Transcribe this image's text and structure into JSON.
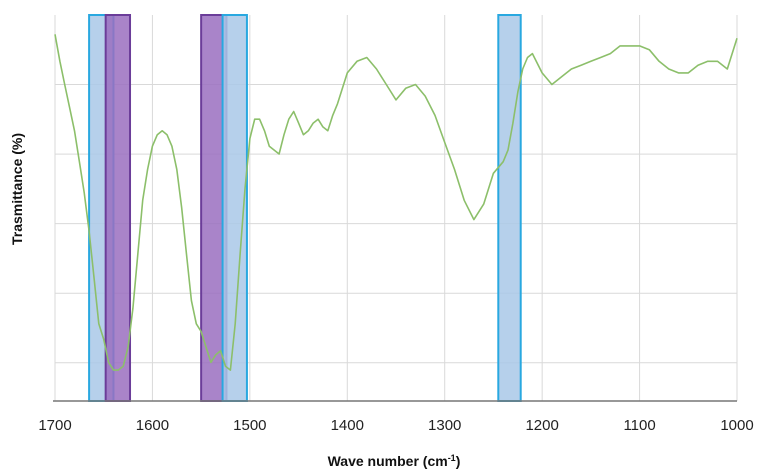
{
  "chart_data": {
    "type": "line",
    "xlabel_text": "Wave number (cm",
    "xlabel_sup": "-1",
    "xlabel_tail": ")",
    "ylabel": "Trasmittance (%)",
    "xlim": [
      1700,
      1000
    ],
    "x_reversed": true,
    "ylim": [
      0,
      100
    ],
    "x_ticks": [
      "1700",
      "1600",
      "1500",
      "1400",
      "1300",
      "1200",
      "1100",
      "1000"
    ],
    "y_ticks_count": 6,
    "grid": true,
    "line_color": "#8cbf6a",
    "bands": [
      {
        "x1": 1665,
        "x2": 1640,
        "fill": "#a9c8e8",
        "stroke": "#29a8e0"
      },
      {
        "x1": 1648,
        "x2": 1623,
        "fill": "#9a6fc0",
        "stroke": "#6b3d99"
      },
      {
        "x1": 1550,
        "x2": 1524,
        "fill": "#9a6fc0",
        "stroke": "#6b3d99"
      },
      {
        "x1": 1528,
        "x2": 1503,
        "fill": "#a9c8e8",
        "stroke": "#29a8e0"
      },
      {
        "x1": 1245,
        "x2": 1222,
        "fill": "#a9c8e8",
        "stroke": "#29a8e0"
      }
    ],
    "series": [
      {
        "x": [
          1700,
          1695,
          1690,
          1685,
          1680,
          1675,
          1670,
          1665,
          1660,
          1655,
          1650,
          1645,
          1640,
          1635,
          1630,
          1625,
          1620,
          1615,
          1610,
          1605,
          1600,
          1595,
          1590,
          1585,
          1580,
          1575,
          1570,
          1565,
          1560,
          1555,
          1550,
          1545,
          1540,
          1535,
          1530,
          1525,
          1520,
          1515,
          1510,
          1505,
          1500,
          1495,
          1490,
          1485,
          1480,
          1475,
          1470,
          1465,
          1460,
          1455,
          1450,
          1445,
          1440,
          1435,
          1430,
          1425,
          1420,
          1415,
          1410,
          1400,
          1390,
          1380,
          1370,
          1360,
          1350,
          1340,
          1330,
          1320,
          1310,
          1300,
          1290,
          1280,
          1270,
          1260,
          1250,
          1240,
          1235,
          1230,
          1225,
          1220,
          1215,
          1210,
          1200,
          1190,
          1180,
          1170,
          1160,
          1150,
          1140,
          1130,
          1120,
          1110,
          1100,
          1090,
          1080,
          1070,
          1060,
          1050,
          1040,
          1030,
          1020,
          1010,
          1000
        ],
        "y": [
          95,
          88,
          82,
          76,
          70,
          62,
          54,
          44,
          32,
          20,
          16,
          10,
          8,
          8,
          9,
          14,
          24,
          38,
          52,
          60,
          66,
          69,
          70,
          69,
          66,
          60,
          50,
          38,
          26,
          20,
          18,
          14,
          10,
          12,
          13,
          9,
          8,
          20,
          38,
          55,
          68,
          73,
          73,
          70,
          66,
          65,
          64,
          69,
          73,
          75,
          72,
          69,
          70,
          72,
          73,
          71,
          70,
          74,
          77,
          85,
          88,
          89,
          86,
          82,
          78,
          81,
          82,
          79,
          74,
          67,
          60,
          52,
          47,
          51,
          59,
          62,
          65,
          72,
          80,
          86,
          89,
          90,
          85,
          82,
          84,
          86,
          87,
          88,
          89,
          90,
          92,
          92,
          92,
          91,
          88,
          86,
          85,
          85,
          87,
          88,
          88,
          86,
          94
        ]
      }
    ]
  }
}
